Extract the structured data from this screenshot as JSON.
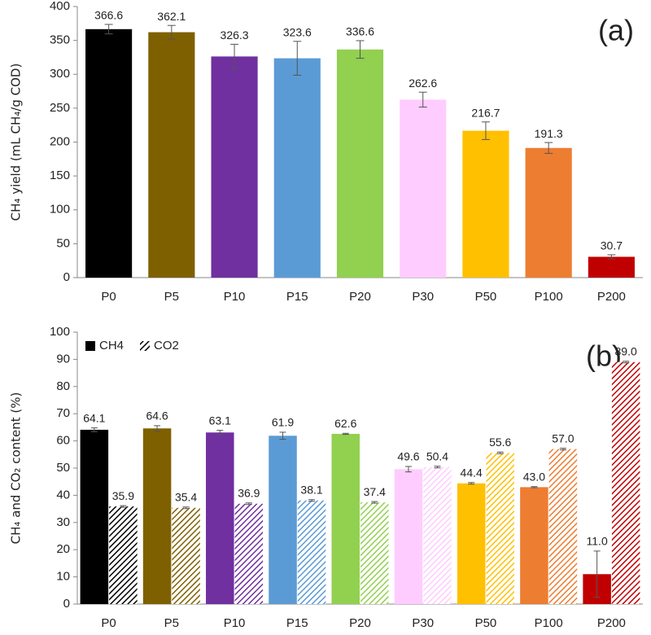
{
  "chart_data": [
    {
      "type": "bar",
      "ylabel": "CH₄ yield (mL CH₄/g COD)",
      "annotation": "(a)",
      "categories": [
        "P0",
        "P5",
        "P10",
        "P15",
        "P20",
        "P30",
        "P50",
        "P100",
        "P200"
      ],
      "values": [
        366.6,
        362.1,
        326.3,
        323.6,
        336.6,
        262.6,
        216.7,
        191.3,
        30.7
      ],
      "errors": [
        7,
        10,
        18,
        25,
        13,
        11,
        13,
        8,
        3
      ],
      "colors": [
        "#000000",
        "#7f6000",
        "#7030a0",
        "#5b9bd5",
        "#92d050",
        "#ffccff",
        "#ffc000",
        "#ed7d31",
        "#c00000"
      ],
      "ylim": [
        0,
        400
      ],
      "yticks": [
        0,
        50,
        100,
        150,
        200,
        250,
        300,
        350,
        400
      ],
      "grid": false
    },
    {
      "type": "bar",
      "ylabel": "CH₄ and CO₂ content (%)",
      "annotation": "(b)",
      "categories": [
        "P0",
        "P5",
        "P10",
        "P15",
        "P20",
        "P30",
        "P50",
        "P100",
        "P200"
      ],
      "colors": [
        "#000000",
        "#7f6000",
        "#7030a0",
        "#5b9bd5",
        "#92d050",
        "#ffccff",
        "#ffc000",
        "#ed7d31",
        "#c00000"
      ],
      "series": [
        {
          "name": "CH4",
          "color": "#000000",
          "hatch": false,
          "values": [
            64.1,
            64.6,
            63.1,
            61.9,
            62.6,
            49.6,
            44.4,
            43.0,
            11.0
          ],
          "value_labels": [
            "64.1",
            "64.6",
            "63.1",
            "61.9",
            "62.6",
            "49.6",
            "44.4",
            "43.0",
            "11.0"
          ],
          "errors": [
            0.7,
            1.0,
            0.8,
            1.3,
            0.2,
            1.0,
            0.3,
            0.2,
            8.5
          ]
        },
        {
          "name": "CO2",
          "color": "#000000",
          "hatch": true,
          "values": [
            35.9,
            35.4,
            36.9,
            38.1,
            37.4,
            50.4,
            55.6,
            57.0,
            89.0
          ],
          "value_labels": [
            "35.9",
            "35.4",
            "36.9",
            "38.1",
            "37.4",
            "50.4",
            "55.6",
            "57.0",
            "89.0"
          ],
          "errors": [
            0.3,
            0.3,
            0.3,
            0.3,
            0.3,
            0.3,
            0.3,
            0.3,
            0.3
          ]
        }
      ],
      "legend": "top-left",
      "ylim": [
        0,
        100
      ],
      "yticks": [
        0,
        10,
        20,
        30,
        40,
        50,
        60,
        70,
        80,
        90,
        100
      ],
      "grid": false
    }
  ]
}
